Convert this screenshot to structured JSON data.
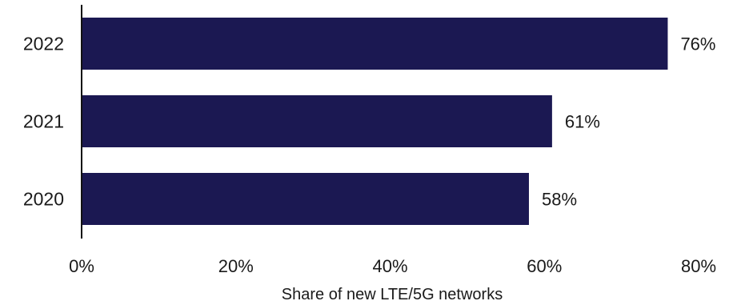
{
  "chart_data": {
    "type": "bar",
    "orientation": "horizontal",
    "categories": [
      "2022",
      "2021",
      "2020"
    ],
    "values": [
      76,
      61,
      58
    ],
    "value_labels": [
      "76%",
      "61%",
      "58%"
    ],
    "xlabel": "Share of new LTE/5G networks",
    "ylabel": "",
    "xlim": [
      0,
      80
    ],
    "x_ticks": [
      0,
      20,
      40,
      60,
      80
    ],
    "x_tick_labels": [
      "0%",
      "20%",
      "40%",
      "60%",
      "80%"
    ],
    "grid": false,
    "bar_color": "#1b1852"
  }
}
